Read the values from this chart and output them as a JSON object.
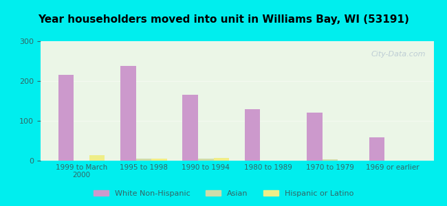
{
  "title": "Year householders moved into unit in Williams Bay, WI (53191)",
  "categories": [
    "1999 to March\n2000",
    "1995 to 1998",
    "1990 to 1994",
    "1980 to 1989",
    "1970 to 1979",
    "1969 or earlier"
  ],
  "white_non_hispanic": [
    215,
    238,
    165,
    130,
    120,
    58
  ],
  "asian": [
    0,
    5,
    5,
    0,
    4,
    0
  ],
  "hispanic_or_latino": [
    13,
    5,
    7,
    0,
    0,
    0
  ],
  "white_color": "#cc99cc",
  "asian_color": "#ccddaa",
  "hispanic_color": "#eeee88",
  "bg_outer": "#00eeee",
  "bg_chart": "#e8f5e8",
  "ylim": [
    0,
    300
  ],
  "yticks": [
    0,
    100,
    200,
    300
  ],
  "bar_width": 0.25,
  "watermark": "City-Data.com"
}
